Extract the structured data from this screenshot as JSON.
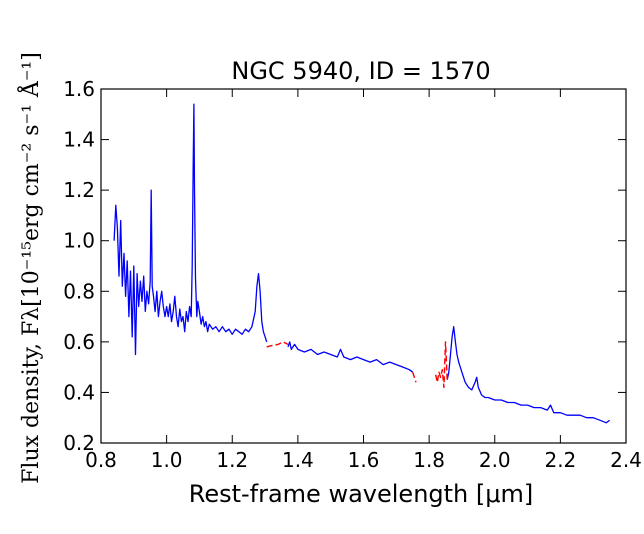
{
  "chart_data": {
    "type": "line",
    "title": "NGC 5940, ID = 1570",
    "xlabel": "Rest-frame wavelength [μm]",
    "ylabel": "Flux density,  Fλ[10⁻¹⁵erg cm⁻² s⁻¹ Å⁻¹]",
    "xlim": [
      0.8,
      2.4
    ],
    "ylim": [
      0.2,
      1.6
    ],
    "x_ticks": [
      "0.8",
      "1.0",
      "1.2",
      "1.4",
      "1.6",
      "1.8",
      "2.0",
      "2.2",
      "2.4"
    ],
    "y_ticks": [
      "0.2",
      "0.4",
      "0.6",
      "0.8",
      "1.0",
      "1.2",
      "1.4",
      "1.6"
    ],
    "grid": false,
    "series": [
      {
        "style": "solid",
        "color": "#0000ff",
        "segments": [
          [
            [
              0.84,
              1.0
            ],
            [
              0.845,
              1.14
            ],
            [
              0.85,
              1.05
            ],
            [
              0.855,
              0.86
            ],
            [
              0.86,
              1.08
            ],
            [
              0.865,
              0.82
            ],
            [
              0.87,
              0.95
            ],
            [
              0.875,
              0.78
            ],
            [
              0.88,
              0.92
            ],
            [
              0.885,
              0.7
            ],
            [
              0.89,
              0.88
            ],
            [
              0.895,
              0.62
            ],
            [
              0.9,
              0.9
            ],
            [
              0.905,
              0.55
            ],
            [
              0.91,
              0.87
            ],
            [
              0.915,
              0.74
            ],
            [
              0.92,
              0.84
            ],
            [
              0.925,
              0.76
            ],
            [
              0.93,
              0.86
            ],
            [
              0.935,
              0.72
            ],
            [
              0.94,
              0.8
            ],
            [
              0.945,
              0.75
            ],
            [
              0.95,
              0.84
            ],
            [
              0.953,
              1.2
            ],
            [
              0.956,
              0.82
            ],
            [
              0.96,
              0.78
            ],
            [
              0.965,
              0.72
            ],
            [
              0.97,
              0.8
            ],
            [
              0.975,
              0.7
            ],
            [
              0.98,
              0.76
            ],
            [
              0.985,
              0.8
            ],
            [
              0.99,
              0.74
            ],
            [
              0.995,
              0.7
            ],
            [
              1.0,
              0.74
            ],
            [
              1.005,
              0.7
            ],
            [
              1.01,
              0.75
            ],
            [
              1.015,
              0.68
            ],
            [
              1.02,
              0.72
            ],
            [
              1.025,
              0.78
            ],
            [
              1.03,
              0.7
            ],
            [
              1.035,
              0.66
            ],
            [
              1.04,
              0.73
            ],
            [
              1.045,
              0.68
            ],
            [
              1.05,
              0.7
            ],
            [
              1.055,
              0.64
            ],
            [
              1.06,
              0.72
            ],
            [
              1.065,
              0.68
            ],
            [
              1.07,
              0.74
            ],
            [
              1.075,
              0.7
            ],
            [
              1.078,
              0.9
            ],
            [
              1.081,
              1.3
            ],
            [
              1.083,
              1.54
            ],
            [
              1.085,
              1.2
            ],
            [
              1.088,
              0.85
            ],
            [
              1.092,
              0.7
            ],
            [
              1.095,
              0.76
            ],
            [
              1.1,
              0.72
            ],
            [
              1.105,
              0.67
            ],
            [
              1.11,
              0.7
            ],
            [
              1.115,
              0.66
            ],
            [
              1.12,
              0.68
            ],
            [
              1.125,
              0.64
            ],
            [
              1.13,
              0.67
            ],
            [
              1.14,
              0.65
            ],
            [
              1.15,
              0.66
            ],
            [
              1.16,
              0.64
            ],
            [
              1.17,
              0.66
            ],
            [
              1.18,
              0.64
            ],
            [
              1.19,
              0.65
            ],
            [
              1.2,
              0.63
            ],
            [
              1.21,
              0.65
            ],
            [
              1.22,
              0.64
            ],
            [
              1.23,
              0.63
            ],
            [
              1.24,
              0.65
            ],
            [
              1.25,
              0.64
            ],
            [
              1.26,
              0.66
            ],
            [
              1.27,
              0.72
            ],
            [
              1.275,
              0.82
            ],
            [
              1.28,
              0.87
            ],
            [
              1.285,
              0.8
            ],
            [
              1.29,
              0.68
            ],
            [
              1.295,
              0.64
            ],
            [
              1.3,
              0.62
            ],
            [
              1.305,
              0.6
            ]
          ],
          [
            [
              1.37,
              0.58
            ],
            [
              1.375,
              0.6
            ],
            [
              1.38,
              0.57
            ],
            [
              1.39,
              0.59
            ],
            [
              1.4,
              0.57
            ],
            [
              1.42,
              0.56
            ],
            [
              1.44,
              0.57
            ],
            [
              1.46,
              0.55
            ],
            [
              1.48,
              0.56
            ],
            [
              1.5,
              0.55
            ],
            [
              1.52,
              0.54
            ],
            [
              1.53,
              0.57
            ],
            [
              1.54,
              0.54
            ],
            [
              1.56,
              0.53
            ],
            [
              1.58,
              0.54
            ],
            [
              1.6,
              0.53
            ],
            [
              1.62,
              0.52
            ],
            [
              1.64,
              0.53
            ],
            [
              1.66,
              0.51
            ],
            [
              1.68,
              0.52
            ],
            [
              1.7,
              0.51
            ],
            [
              1.72,
              0.5
            ],
            [
              1.74,
              0.49
            ],
            [
              1.75,
              0.48
            ]
          ],
          [
            [
              1.855,
              0.45
            ],
            [
              1.86,
              0.48
            ],
            [
              1.865,
              0.55
            ],
            [
              1.87,
              0.62
            ],
            [
              1.875,
              0.66
            ],
            [
              1.88,
              0.6
            ],
            [
              1.885,
              0.55
            ],
            [
              1.89,
              0.52
            ],
            [
              1.9,
              0.48
            ],
            [
              1.91,
              0.44
            ],
            [
              1.92,
              0.42
            ],
            [
              1.93,
              0.41
            ],
            [
              1.94,
              0.44
            ],
            [
              1.945,
              0.46
            ],
            [
              1.95,
              0.42
            ],
            [
              1.96,
              0.39
            ],
            [
              1.97,
              0.38
            ],
            [
              1.98,
              0.38
            ],
            [
              2.0,
              0.37
            ],
            [
              2.02,
              0.37
            ],
            [
              2.04,
              0.36
            ],
            [
              2.06,
              0.36
            ],
            [
              2.08,
              0.35
            ],
            [
              2.1,
              0.35
            ],
            [
              2.12,
              0.34
            ],
            [
              2.14,
              0.34
            ],
            [
              2.16,
              0.33
            ],
            [
              2.17,
              0.35
            ],
            [
              2.18,
              0.32
            ],
            [
              2.2,
              0.32
            ],
            [
              2.22,
              0.31
            ],
            [
              2.24,
              0.31
            ],
            [
              2.26,
              0.31
            ],
            [
              2.28,
              0.3
            ],
            [
              2.3,
              0.3
            ],
            [
              2.32,
              0.29
            ],
            [
              2.34,
              0.28
            ],
            [
              2.35,
              0.29
            ]
          ]
        ]
      },
      {
        "style": "dashed",
        "color": "#ff0000",
        "segments": [
          [
            [
              1.305,
              0.58
            ],
            [
              1.32,
              0.585
            ],
            [
              1.34,
              0.59
            ],
            [
              1.355,
              0.6
            ],
            [
              1.37,
              0.59
            ]
          ],
          [
            [
              1.75,
              0.48
            ],
            [
              1.76,
              0.44
            ]
          ],
          [
            [
              1.82,
              0.47
            ],
            [
              1.825,
              0.44
            ],
            [
              1.83,
              0.48
            ],
            [
              1.835,
              0.46
            ],
            [
              1.84,
              0.49
            ],
            [
              1.845,
              0.42
            ],
            [
              1.85,
              0.6
            ],
            [
              1.855,
              0.45
            ]
          ]
        ]
      }
    ]
  }
}
